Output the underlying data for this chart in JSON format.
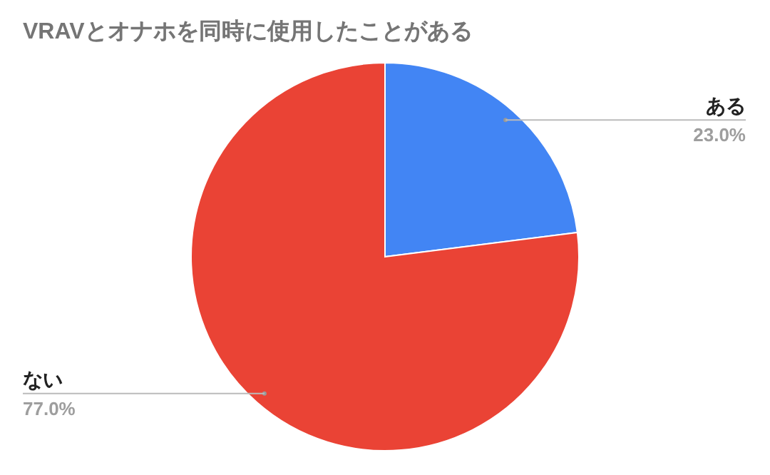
{
  "chart_data": {
    "type": "pie",
    "title": "VRAVとオナホを同時に使用したことがある",
    "categories": [
      "ある",
      "ない"
    ],
    "values": [
      23,
      77
    ],
    "colors": [
      "#4285f4",
      "#ea4335"
    ],
    "value_labels": [
      "23.0%",
      "77.0%"
    ]
  }
}
